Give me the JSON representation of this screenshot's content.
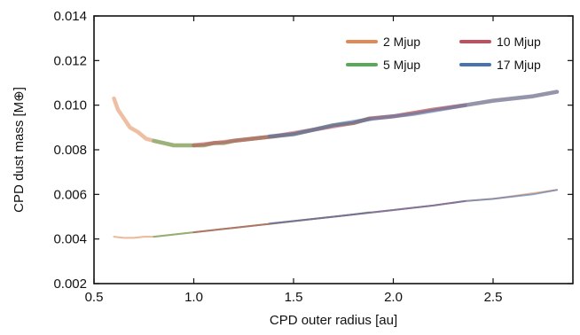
{
  "chart_data": {
    "type": "line",
    "title": "",
    "xlabel": "CPD outer radius [au]",
    "ylabel": "CPD dust mass [M⊕]",
    "xlim": [
      0.5,
      2.9
    ],
    "ylim": [
      0.002,
      0.014
    ],
    "x_ticks": [
      0.5,
      1.0,
      1.5,
      2.0,
      2.5
    ],
    "x_tick_labels": [
      "0.5",
      "1.0",
      "1.5",
      "2.0",
      "2.5"
    ],
    "y_ticks": [
      0.002,
      0.004,
      0.006,
      0.008,
      0.01,
      0.012,
      0.014
    ],
    "y_tick_labels": [
      "0.002",
      "0.004",
      "0.006",
      "0.008",
      "0.010",
      "0.012",
      "0.014"
    ],
    "grid": false,
    "legend_position": "top-right",
    "legend": [
      {
        "name": "2 Mjup",
        "color": "#e08a57"
      },
      {
        "name": "10 Mjup",
        "color": "#c0505f"
      },
      {
        "name": "5 Mjup",
        "color": "#5aa85a"
      },
      {
        "name": "17 Mjup",
        "color": "#4a72b0"
      }
    ],
    "series": [
      {
        "name": "2 Mjup",
        "group": "upper",
        "color": "#e08a57",
        "x": [
          0.6,
          0.62,
          0.65,
          0.68,
          0.72,
          0.76,
          0.8,
          0.85,
          0.9,
          0.95,
          1.0,
          1.05,
          1.1,
          1.15,
          1.2,
          1.3,
          1.4,
          1.5,
          1.6,
          1.7,
          1.8,
          1.88,
          2.0,
          2.2,
          2.36,
          2.5,
          2.7,
          2.82
        ],
        "y": [
          0.0103,
          0.0098,
          0.0094,
          0.009,
          0.0088,
          0.0085,
          0.0084,
          0.0083,
          0.0082,
          0.0082,
          0.0082,
          0.0082,
          0.0083,
          0.0083,
          0.0084,
          0.0085,
          0.0086,
          0.0087,
          0.0089,
          0.0091,
          0.0092,
          0.0094,
          0.0095,
          0.0098,
          0.01,
          0.0102,
          0.0104,
          0.0106
        ]
      },
      {
        "name": "5 Mjup",
        "group": "upper",
        "color": "#5aa85a",
        "x": [
          0.8,
          0.85,
          0.9,
          0.95,
          1.0,
          1.05,
          1.1,
          1.15,
          1.2,
          1.3,
          1.4,
          1.5,
          1.6,
          1.7,
          1.8,
          1.88
        ],
        "y": [
          0.0084,
          0.0083,
          0.0082,
          0.0082,
          0.0082,
          0.0082,
          0.0083,
          0.0083,
          0.0084,
          0.0085,
          0.0086,
          0.0087,
          0.0089,
          0.0091,
          0.0092,
          0.0094
        ]
      },
      {
        "name": "10 Mjup",
        "group": "upper",
        "color": "#c0505f",
        "x": [
          1.0,
          1.2,
          1.4,
          1.6,
          1.8,
          1.88,
          2.0,
          2.2,
          2.36
        ],
        "y": [
          0.0082,
          0.0084,
          0.0086,
          0.0089,
          0.0092,
          0.0094,
          0.0095,
          0.0098,
          0.01
        ]
      },
      {
        "name": "17 Mjup",
        "group": "upper",
        "color": "#4a72b0",
        "x": [
          1.38,
          1.5,
          1.7,
          1.9,
          2.1,
          2.36,
          2.5,
          2.7,
          2.82
        ],
        "y": [
          0.0086,
          0.0087,
          0.0091,
          0.0094,
          0.0096,
          0.01,
          0.0102,
          0.0104,
          0.0106
        ]
      },
      {
        "name": "2 Mjup",
        "group": "lower",
        "color": "#e08a57",
        "x": [
          0.6,
          0.65,
          0.7,
          0.75,
          0.8,
          0.9,
          1.0,
          1.2,
          1.4,
          1.6,
          1.8,
          2.0,
          2.2,
          2.36,
          2.5,
          2.82
        ],
        "y": [
          0.0041,
          0.00405,
          0.00405,
          0.0041,
          0.0041,
          0.0042,
          0.0043,
          0.0045,
          0.0047,
          0.0049,
          0.0051,
          0.0053,
          0.0055,
          0.0057,
          0.0058,
          0.0062
        ]
      },
      {
        "name": "5 Mjup",
        "group": "lower",
        "color": "#5aa85a",
        "x": [
          0.8,
          0.9,
          1.0,
          1.2,
          1.4,
          1.6,
          1.8,
          1.88
        ],
        "y": [
          0.0041,
          0.0042,
          0.0043,
          0.0045,
          0.0047,
          0.0049,
          0.0051,
          0.0052
        ]
      },
      {
        "name": "10 Mjup",
        "group": "lower",
        "color": "#c0505f",
        "x": [
          1.0,
          1.2,
          1.4,
          1.6,
          1.8,
          2.0,
          2.2,
          2.36
        ],
        "y": [
          0.0043,
          0.0045,
          0.0047,
          0.0049,
          0.0051,
          0.0053,
          0.0055,
          0.0057
        ]
      },
      {
        "name": "17 Mjup",
        "group": "lower",
        "color": "#4a72b0",
        "x": [
          1.38,
          1.6,
          1.8,
          2.0,
          2.2,
          2.36,
          2.5,
          2.7,
          2.82
        ],
        "y": [
          0.0047,
          0.0049,
          0.0051,
          0.0053,
          0.0055,
          0.0057,
          0.0058,
          0.006,
          0.0062
        ]
      }
    ]
  }
}
